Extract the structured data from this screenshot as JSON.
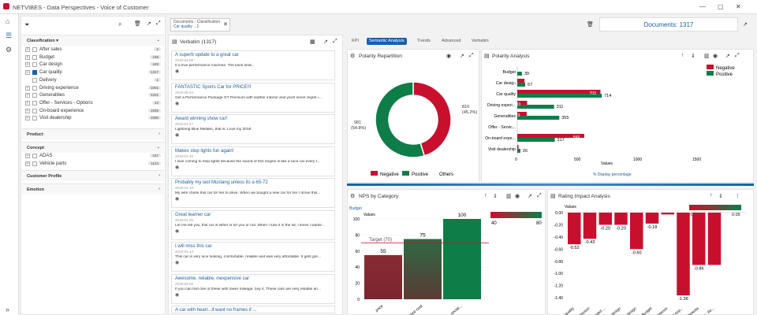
{
  "app": {
    "title": "NETVIBES - Data Perspectives - Voice of Customer"
  },
  "filters": {
    "header": "Classification",
    "items": [
      {
        "label": "After sales",
        "count": "2"
      },
      {
        "label": "Budget",
        "count": "195"
      },
      {
        "label": "Car design",
        "count": "445"
      },
      {
        "label": "Car quality",
        "count": "1317",
        "checked": true
      },
      {
        "label": "Delivery",
        "count": "1"
      },
      {
        "label": "Driving experience",
        "count": "1001"
      },
      {
        "label": "Generalities",
        "count": "1201"
      },
      {
        "label": "Offer - Services - Options",
        "count": "12"
      },
      {
        "label": "On-board experience",
        "count": "1935"
      },
      {
        "label": "Visit dealership",
        "count": "1096"
      }
    ],
    "groups": [
      "Product",
      "Concept",
      "Customer Profile",
      "Emotion"
    ],
    "concept_items": [
      {
        "label": "ADAS",
        "count": "167"
      },
      {
        "label": "Vehicle parts",
        "count": "1134"
      }
    ]
  },
  "refine": {
    "title": "Documents - Classification",
    "sub": "Car quality ...1"
  },
  "documents_label": "Documents:",
  "documents_count": "1317",
  "verbatim": {
    "title": "Verbatim (1317)",
    "cards": [
      {
        "title": "A superb update to a great car",
        "date": "2018-03-08",
        "text": "It a true performance machine. The back seat..."
      },
      {
        "title": "FANTASTIC Sports Car for PRICE!!!",
        "date": "2018-08-24",
        "text": "Get a Performance Package GT Premium with leather interior and you'll never regret i..."
      },
      {
        "title": "Award winning show car!",
        "date": "2018-01-27",
        "text": "Lightning Blue Metallic, that is. Love my 2018"
      },
      {
        "title": "Makes stop lights fun again!",
        "date": "2018-01-10",
        "text": "I love coming to stop lights because the sound of this engine is like a race car every t..."
      },
      {
        "title": "Probably my last Mustang unless its a 65-72",
        "date": "2018-01-18",
        "text": "My wife chose this car for her to drive. When we bought a new car for her I drove this..."
      },
      {
        "title": "Great learner car",
        "date": "2018-01-25",
        "text": "Let me tell you, this car is either is for you or not. When I saw it in the lot, I knew I wante..."
      },
      {
        "title": "I will miss this car",
        "date": "2018-01-14",
        "text": "This car is very nice looking, comfortable, reliable and was very affordable. It gets gre..."
      },
      {
        "title": "Awesome, reliable, inexpensive car",
        "date": "2018-02-02",
        "text": "If you can find one of these with lower mileage, buy it. These cars are very reliable an..."
      },
      {
        "title": "A car with heart...if want no frames if ...",
        "date": "",
        "text": ""
      }
    ]
  },
  "tabs": [
    "KPI",
    "Semantic Analysis",
    "Trends",
    "Advanced",
    "Verbatim"
  ],
  "polarity_rep": {
    "title": "Polarity Repartition",
    "neg_label": "810",
    "neg_pct": "(45.2%)",
    "pos_label": "981",
    "pos_pct": "(54.8%)",
    "legend": [
      "Negative",
      "Positive",
      "Others"
    ],
    "values": {
      "negative": 810,
      "positive": 981
    }
  },
  "polarity_analysis": {
    "title": "Polarity Analysis",
    "legend": [
      "Negative",
      "Positive"
    ],
    "xlabel": "Values",
    "link": "% Display percentage",
    "chart_data": {
      "type": "bar",
      "categories": [
        "Budget",
        "Car design",
        "Car quality",
        "Driving experi...",
        "Generalities",
        "Offer - Servic...",
        "On-board expe...",
        "Visit dealership"
      ],
      "series": [
        {
          "name": "Negative",
          "values": [
            0,
            61,
            703,
            83,
            79,
            0,
            566,
            10
          ]
        },
        {
          "name": "Positive",
          "values": [
            39,
            67,
            714,
            311,
            355,
            0,
            317,
            26
          ]
        }
      ],
      "bar_labels": [
        [
          "",
          "61",
          "703",
          "83",
          "79",
          "",
          "566",
          ""
        ],
        [
          "39",
          "67",
          "714",
          "311",
          "355",
          "",
          "317",
          "26"
        ]
      ],
      "xticks": [
        "0",
        "500",
        "1000",
        "1500"
      ],
      "xlim": [
        0,
        1500
      ]
    }
  },
  "nps": {
    "title": "NPS by Category",
    "sub": "Budget",
    "ylabel": "Values",
    "target": "Target (70)",
    "scale": [
      "40",
      "80"
    ],
    "chart_data": {
      "type": "bar",
      "categories": [
        "price",
        "maintenance cost",
        "social..."
      ],
      "values": [
        55,
        75,
        100
      ],
      "yticks": [
        "0",
        "20",
        "40",
        "60",
        "80",
        "100"
      ],
      "ylim": [
        0,
        100
      ]
    }
  },
  "rating": {
    "title": "Rating Impact Analysis",
    "ylabel": "Values",
    "scale": [
      "-0.05",
      "0.05"
    ],
    "chart_data": {
      "type": "bar",
      "categories": [
        "Car quality",
        "Transmission",
        "Car loaded ...",
        "Car design",
        "Interior design",
        "Budget",
        "Performance",
        "On-board exp...",
        "Multimedia",
        "Dealer - Se..."
      ],
      "values": [
        -0.52,
        -0.43,
        -0.2,
        -0.2,
        -0.6,
        -0.18,
        -0.03,
        -1.36,
        -0.86,
        -0.86
      ],
      "labels": [
        "-0.52",
        "-0.43",
        "-0.20",
        "-0.20",
        "-0.60",
        "-0.18",
        "",
        "-1.36",
        "-0.86",
        ""
      ],
      "yticks": [
        "0.00",
        "-0.20",
        "-0.40",
        "-0.60",
        "-0.80",
        "-1.00",
        "-1.20",
        "-1.40"
      ],
      "ylim": [
        -1.45,
        0
      ]
    }
  },
  "colors": {
    "neg": "#c8102e",
    "pos": "#0e7d48",
    "blue": "#1b5fa5"
  }
}
